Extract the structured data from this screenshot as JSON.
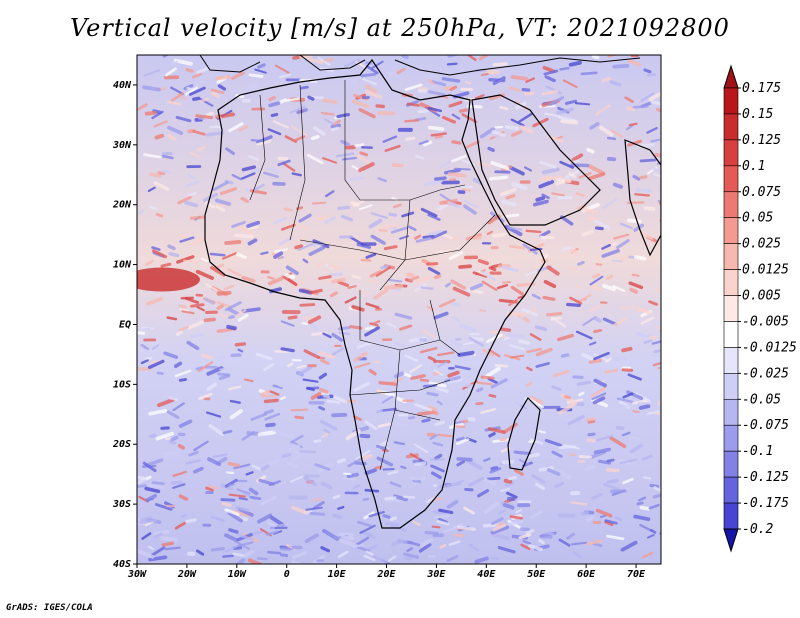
{
  "title": "Vertical velocity [m/s] at 250hPa, VT: 2021092800",
  "footer": "GrADS: IGES/COLA",
  "map": {
    "lon_range": [
      -30,
      75
    ],
    "lat_range": [
      -40,
      45
    ],
    "lat_ticks": [
      {
        "value": 40,
        "label": "40N"
      },
      {
        "value": 30,
        "label": "30N"
      },
      {
        "value": 20,
        "label": "20N"
      },
      {
        "value": 10,
        "label": "10N"
      },
      {
        "value": 0,
        "label": "EQ"
      },
      {
        "value": -10,
        "label": "10S"
      },
      {
        "value": -20,
        "label": "20S"
      },
      {
        "value": -30,
        "label": "30S"
      },
      {
        "value": -40,
        "label": "40S"
      }
    ],
    "lon_ticks": [
      {
        "value": -30,
        "label": "30W"
      },
      {
        "value": -20,
        "label": "20W"
      },
      {
        "value": -10,
        "label": "10W"
      },
      {
        "value": 0,
        "label": "0"
      },
      {
        "value": 10,
        "label": "10E"
      },
      {
        "value": 20,
        "label": "20E"
      },
      {
        "value": 30,
        "label": "30E"
      },
      {
        "value": 40,
        "label": "40E"
      },
      {
        "value": 50,
        "label": "50E"
      },
      {
        "value": 60,
        "label": "60E"
      },
      {
        "value": 70,
        "label": "70E"
      }
    ]
  },
  "colorbar": {
    "levels": [
      {
        "label": "0.175",
        "color": "#b8161a"
      },
      {
        "label": "0.15",
        "color": "#c92c2c"
      },
      {
        "label": "0.125",
        "color": "#d84040"
      },
      {
        "label": "0.1",
        "color": "#e35a56"
      },
      {
        "label": "0.075",
        "color": "#ec7a72"
      },
      {
        "label": "0.05",
        "color": "#f39a91"
      },
      {
        "label": "0.025",
        "color": "#f7b8af"
      },
      {
        "label": "0.0125",
        "color": "#fbd3cd"
      },
      {
        "label": "0.005",
        "color": "#fdeae6"
      },
      {
        "label": "-0.005",
        "color": "#ffffff"
      },
      {
        "label": "-0.0125",
        "color": "#e6e6fb"
      },
      {
        "label": "-0.025",
        "color": "#cfcff6"
      },
      {
        "label": "-0.05",
        "color": "#b6b6f1"
      },
      {
        "label": "-0.075",
        "color": "#9c9cec"
      },
      {
        "label": "-0.1",
        "color": "#8181e6"
      },
      {
        "label": "-0.125",
        "color": "#6464de"
      },
      {
        "label": "-0.175",
        "color": "#4646d2"
      },
      {
        "label": "-0.2",
        "color": "#2828c0"
      }
    ],
    "top_color": "#a0121a",
    "bottom_color": "#1414a8"
  }
}
